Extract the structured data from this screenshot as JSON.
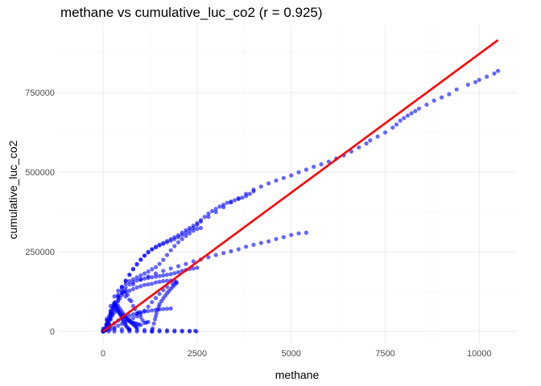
{
  "chart_data": {
    "type": "scatter",
    "title": "methane vs cumulative_luc_co2 (r = 0.925)",
    "xlabel": "methane",
    "ylabel": "cumulative_luc_co2",
    "xlim": [
      -1200,
      11000
    ],
    "ylim": [
      -40000,
      960000
    ],
    "xticks": [
      0,
      2500,
      5000,
      7500,
      10000
    ],
    "xtick_labels": [
      "0",
      "2500",
      "5000",
      "7500",
      "10000"
    ],
    "yticks": [
      0,
      250000,
      500000,
      750000
    ],
    "ytick_labels": [
      "0",
      "250000",
      "500000",
      "750000"
    ],
    "grid": true,
    "point_color": "#0000ff",
    "point_opacity": 0.6,
    "line_color": "#ff0000",
    "fit_line": {
      "x": [
        0,
        10500
      ],
      "y": [
        0,
        915000
      ]
    },
    "series": [
      {
        "x": [
          10500,
          10400,
          10200,
          10000,
          9900,
          9700,
          9400,
          9200,
          9000,
          8800,
          8600,
          8400,
          8300,
          8200,
          8100,
          8000,
          7900,
          7800,
          7700,
          7500,
          7300,
          7100,
          7000,
          6800,
          6600,
          6400,
          6200,
          6000,
          5800,
          5600,
          5400,
          5200,
          5000,
          4800,
          4600,
          4400,
          4200,
          4000,
          3800,
          3600,
          3400,
          3200,
          3000,
          2800,
          2600,
          2500,
          2400,
          2300,
          2200,
          2100,
          2000,
          1900,
          1800,
          1700,
          1600,
          1500,
          1400,
          1300,
          1200,
          1100,
          1000,
          900,
          800,
          700,
          600,
          500,
          400,
          300,
          200,
          100,
          0
        ],
        "y": [
          818000,
          810000,
          800000,
          790000,
          783000,
          775000,
          760000,
          745000,
          735000,
          725000,
          712000,
          700000,
          692000,
          685000,
          678000,
          670000,
          662000,
          650000,
          640000,
          625000,
          612000,
          600000,
          590000,
          578000,
          565000,
          553000,
          543000,
          533000,
          525000,
          517000,
          508000,
          500000,
          490000,
          482000,
          474000,
          465000,
          455000,
          445000,
          432000,
          418000,
          405000,
          390000,
          375000,
          360000,
          345000,
          335000,
          325000,
          318000,
          310000,
          303000,
          296000,
          290000,
          285000,
          280000,
          275000,
          270000,
          264000,
          258000,
          250000,
          238000,
          225000,
          210000,
          195000,
          178000,
          160000,
          140000,
          115000,
          85000,
          55000,
          25000,
          2000
        ]
      },
      {
        "x": [
          5400,
          5200,
          5000,
          4800,
          4600,
          4400,
          4200,
          4000,
          3800,
          3600,
          3400,
          3200,
          3000,
          2800,
          2600,
          2400,
          2200,
          2000,
          1800,
          1600,
          1400,
          1200,
          1000,
          800,
          600,
          400,
          200,
          0
        ],
        "y": [
          310000,
          308000,
          303000,
          296000,
          290000,
          283000,
          278000,
          272000,
          266000,
          258000,
          252000,
          246000,
          240000,
          233000,
          226000,
          220000,
          212000,
          205000,
          198000,
          190000,
          182000,
          173000,
          162000,
          148000,
          128000,
          100000,
          55000,
          3000
        ]
      },
      {
        "x": [
          4000,
          3900,
          3800,
          3700,
          3600,
          3500,
          3400,
          3300,
          3200,
          3100,
          3000,
          2900,
          2800,
          2700,
          2600,
          2500,
          2400,
          2300,
          2200,
          2100,
          2000,
          1900,
          1800,
          1700,
          1600,
          1500,
          1400,
          1300,
          1200,
          1100,
          1000,
          900,
          800,
          700,
          600,
          500,
          400,
          300,
          200,
          100,
          0
        ],
        "y": [
          440000,
          432000,
          425000,
          420000,
          416000,
          412000,
          408000,
          404000,
          398000,
          392000,
          385000,
          378000,
          370000,
          360000,
          350000,
          340000,
          332000,
          325000,
          318000,
          310000,
          302000,
          296000,
          290000,
          284000,
          278000,
          272000,
          266000,
          258000,
          248000,
          238000,
          226000,
          212000,
          196000,
          178000,
          158000,
          134000,
          108000,
          80000,
          50000,
          22000,
          1000
        ]
      },
      {
        "x": [
          2600,
          2500,
          2400,
          2300,
          2200,
          2100,
          2000,
          1900,
          1800,
          1700,
          1600,
          1500,
          1400,
          1300,
          1200,
          1100,
          1000,
          900,
          800,
          700,
          600,
          500,
          400,
          300,
          200,
          100,
          0
        ],
        "y": [
          325000,
          322000,
          316000,
          308000,
          300000,
          290000,
          280000,
          268000,
          255000,
          240000,
          225000,
          212000,
          202000,
          195000,
          188000,
          182000,
          176000,
          170000,
          164000,
          158000,
          150000,
          140000,
          128000,
          110000,
          80000,
          40000,
          0
        ]
      },
      {
        "x": [
          2500,
          2400,
          2300,
          2200,
          2100,
          2000,
          1900,
          1800,
          1700,
          1600,
          1500,
          1400,
          1300,
          1200,
          1100,
          1000,
          900,
          800,
          700,
          600,
          500,
          400,
          300,
          200,
          100,
          0
        ],
        "y": [
          200000,
          198000,
          196000,
          193000,
          190000,
          186000,
          183000,
          180000,
          178000,
          176000,
          174000,
          172000,
          170000,
          168000,
          166000,
          164000,
          160000,
          155000,
          148000,
          138000,
          125000,
          110000,
          90000,
          65000,
          35000,
          0
        ]
      },
      {
        "x": [
          2480,
          2300,
          2100,
          1900,
          1700,
          1500,
          1300,
          1100,
          900,
          700,
          500,
          300,
          150,
          0
        ],
        "y": [
          0,
          0,
          0,
          0,
          0,
          0,
          0,
          0,
          0,
          0,
          0,
          0,
          0,
          0
        ]
      },
      {
        "x": [
          2450,
          2300,
          2100,
          1900,
          1700,
          1500,
          1300,
          1100,
          900,
          700,
          500,
          300,
          150,
          0
        ],
        "y": [
          2000,
          2200,
          2500,
          3000,
          3600,
          4000,
          4500,
          5000,
          5600,
          6200,
          7000,
          7800,
          8500,
          9000
        ]
      },
      {
        "x": [
          1950,
          1850,
          1700,
          1600,
          1500,
          1400,
          1300,
          1200,
          1100,
          1000,
          900,
          800,
          700,
          600,
          500,
          400,
          300,
          200,
          100,
          0
        ],
        "y": [
          155000,
          150000,
          140000,
          130000,
          118000,
          105000,
          92000,
          78000,
          65000,
          55000,
          48000,
          42000,
          36000,
          30000,
          24000,
          18000,
          12000,
          8000,
          4000,
          1000
        ]
      },
      {
        "x": [
          1300,
          1320,
          1350,
          1380,
          1400,
          1420,
          1450,
          1480,
          1500,
          1550,
          1600,
          1650,
          1700,
          1750,
          1800,
          1850,
          1900,
          1950
        ],
        "y": [
          0,
          10000,
          25000,
          38000,
          48000,
          58000,
          68000,
          78000,
          86000,
          95000,
          104000,
          112000,
          120000,
          127000,
          134000,
          140000,
          146000,
          152000
        ]
      },
      {
        "x": [
          1800,
          1700,
          1600,
          1500,
          1400,
          1300,
          1200,
          1100,
          1000,
          900,
          800,
          700,
          600,
          500,
          400,
          300,
          200,
          100,
          0
        ],
        "y": [
          72000,
          71000,
          70000,
          69000,
          68000,
          66000,
          64000,
          62000,
          60000,
          57000,
          54000,
          50000,
          46000,
          40000,
          34000,
          26000,
          18000,
          9000,
          0
        ]
      },
      {
        "x": [
          1200,
          1150,
          1100,
          1050,
          1000,
          950,
          900,
          850,
          800,
          750,
          700,
          650,
          600,
          550,
          500,
          450,
          400,
          350,
          300,
          250,
          200,
          150,
          100,
          50
        ],
        "y": [
          30000,
          28000,
          27000,
          35000,
          45000,
          60000,
          55000,
          70000,
          80000,
          95000,
          100000,
          115000,
          110000,
          125000,
          120000,
          105000,
          95000,
          80000,
          70000,
          55000,
          40000,
          25000,
          15000,
          5000
        ]
      },
      {
        "x": [
          1000,
          950,
          900,
          850,
          800,
          750,
          700,
          650,
          600,
          550,
          500,
          450,
          400,
          350,
          300,
          250,
          200,
          150,
          100,
          50
        ],
        "y": [
          20000,
          22000,
          24000,
          26000,
          28000,
          30000,
          33000,
          36000,
          40000,
          45000,
          50000,
          56000,
          62000,
          68000,
          60000,
          50000,
          38000,
          26000,
          14000,
          4000
        ]
      },
      {
        "x": [
          900,
          870,
          840,
          800,
          760,
          720,
          680,
          640,
          600,
          560,
          520,
          480,
          440,
          400,
          360,
          320,
          280,
          240,
          200,
          160,
          120,
          80,
          40,
          20
        ],
        "y": [
          12000,
          15000,
          18000,
          22000,
          26000,
          30000,
          35000,
          40000,
          46000,
          52000,
          58000,
          65000,
          72000,
          80000,
          88000,
          92000,
          85000,
          75000,
          62000,
          48000,
          34000,
          20000,
          8000,
          2000
        ]
      },
      {
        "x": [
          700,
          680,
          650,
          620,
          600,
          580,
          550,
          520,
          500,
          480,
          450,
          420,
          400,
          380,
          350,
          320,
          300,
          280,
          250,
          220,
          200,
          180,
          150,
          120,
          100,
          80,
          50,
          30
        ],
        "y": [
          5000,
          8000,
          12000,
          16000,
          20000,
          25000,
          30000,
          36000,
          42000,
          48000,
          54000,
          60000,
          66000,
          72000,
          78000,
          84000,
          80000,
          74000,
          66000,
          58000,
          50000,
          42000,
          34000,
          26000,
          18000,
          12000,
          6000,
          2000
        ]
      },
      {
        "x": [
          1900,
          1800,
          1700,
          1600,
          1500,
          1400,
          1300,
          1200,
          1100,
          1000,
          900,
          800,
          700,
          600,
          500
        ],
        "y": [
          160000,
          160000,
          159000,
          158000,
          156000,
          154000,
          150000,
          148000,
          146000,
          142000,
          138000,
          133000,
          128000,
          122000,
          115000
        ]
      }
    ]
  }
}
